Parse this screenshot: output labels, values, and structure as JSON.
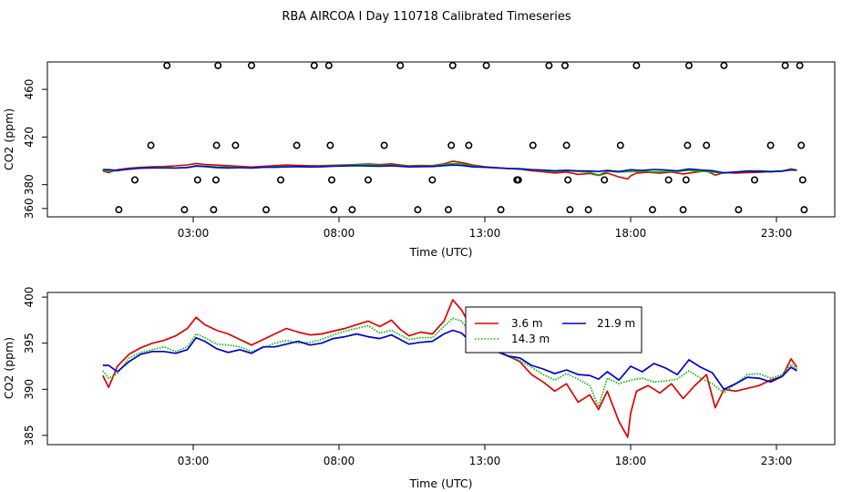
{
  "title": "RBA AIRCOA I  Day 110718  Calibrated Timeseries",
  "chart_data": [
    {
      "type": "scatter",
      "panel": "top",
      "xlabel": "Time (UTC)",
      "ylabel": "CO2 (ppm)",
      "xlim": [
        -2.0,
        25.0
      ],
      "ylim": [
        353,
        483
      ],
      "xticks": [
        3,
        8,
        13,
        18,
        23
      ],
      "xtick_labels": [
        "03:00",
        "08:00",
        "13:00",
        "18:00",
        "23:00"
      ],
      "yticks": [
        360,
        380,
        420,
        460
      ],
      "ytick_labels": [
        "360",
        "380",
        "420",
        "460"
      ],
      "calibration_points": [
        {
          "x": 0.45,
          "y": 359
        },
        {
          "x": 1.0,
          "y": 384
        },
        {
          "x": 1.55,
          "y": 413
        },
        {
          "x": 2.1,
          "y": 480
        },
        {
          "x": 2.7,
          "y": 359
        },
        {
          "x": 3.15,
          "y": 384
        },
        {
          "x": 3.7,
          "y": 359
        },
        {
          "x": 3.78,
          "y": 384
        },
        {
          "x": 3.8,
          "y": 413
        },
        {
          "x": 3.85,
          "y": 480
        },
        {
          "x": 4.45,
          "y": 413
        },
        {
          "x": 5.0,
          "y": 480
        },
        {
          "x": 5.5,
          "y": 359
        },
        {
          "x": 6.0,
          "y": 384
        },
        {
          "x": 6.55,
          "y": 413
        },
        {
          "x": 7.15,
          "y": 480
        },
        {
          "x": 7.65,
          "y": 480
        },
        {
          "x": 7.7,
          "y": 413
        },
        {
          "x": 7.75,
          "y": 384
        },
        {
          "x": 7.82,
          "y": 359
        },
        {
          "x": 8.45,
          "y": 359
        },
        {
          "x": 9.0,
          "y": 384
        },
        {
          "x": 9.55,
          "y": 413
        },
        {
          "x": 10.1,
          "y": 480
        },
        {
          "x": 10.7,
          "y": 359
        },
        {
          "x": 11.2,
          "y": 384
        },
        {
          "x": 11.75,
          "y": 359
        },
        {
          "x": 11.85,
          "y": 413
        },
        {
          "x": 11.9,
          "y": 480
        },
        {
          "x": 12.45,
          "y": 413
        },
        {
          "x": 13.05,
          "y": 480
        },
        {
          "x": 13.55,
          "y": 359
        },
        {
          "x": 14.1,
          "y": 384
        },
        {
          "x": 14.15,
          "y": 384
        },
        {
          "x": 14.65,
          "y": 413
        },
        {
          "x": 15.2,
          "y": 480
        },
        {
          "x": 15.75,
          "y": 480
        },
        {
          "x": 15.8,
          "y": 413
        },
        {
          "x": 15.85,
          "y": 384
        },
        {
          "x": 15.92,
          "y": 359
        },
        {
          "x": 16.55,
          "y": 359
        },
        {
          "x": 17.1,
          "y": 384
        },
        {
          "x": 17.65,
          "y": 413
        },
        {
          "x": 18.2,
          "y": 480
        },
        {
          "x": 18.75,
          "y": 359
        },
        {
          "x": 19.3,
          "y": 384
        },
        {
          "x": 19.8,
          "y": 359
        },
        {
          "x": 19.9,
          "y": 384
        },
        {
          "x": 19.95,
          "y": 413
        },
        {
          "x": 20.0,
          "y": 480
        },
        {
          "x": 20.6,
          "y": 413
        },
        {
          "x": 21.2,
          "y": 480
        },
        {
          "x": 21.7,
          "y": 359
        },
        {
          "x": 22.25,
          "y": 384
        },
        {
          "x": 22.8,
          "y": 413
        },
        {
          "x": 23.3,
          "y": 480
        },
        {
          "x": 23.8,
          "y": 480
        },
        {
          "x": 23.85,
          "y": 413
        },
        {
          "x": 23.9,
          "y": 384
        },
        {
          "x": 23.95,
          "y": 359
        }
      ]
    },
    {
      "type": "line",
      "panel": "bottom",
      "xlabel": "Time (UTC)",
      "ylabel": "CO2 (ppm)",
      "xlim": [
        -2.0,
        25.0
      ],
      "ylim": [
        384.0,
        400.5
      ],
      "xticks": [
        3,
        8,
        13,
        18,
        23
      ],
      "xtick_labels": [
        "03:00",
        "08:00",
        "13:00",
        "18:00",
        "23:00"
      ],
      "yticks": [
        385,
        390,
        395,
        400
      ],
      "ytick_labels": [
        "385",
        "390",
        "395",
        "400"
      ],
      "legend_position": "top-center",
      "series": [
        {
          "name": "3.6 m",
          "color": "#e00000",
          "style": "solid",
          "x": [
            -0.1,
            0.1,
            0.4,
            0.8,
            1.2,
            1.6,
            2.0,
            2.4,
            2.8,
            3.1,
            3.4,
            3.8,
            4.2,
            4.6,
            5.0,
            5.4,
            5.8,
            6.2,
            6.6,
            7.0,
            7.4,
            7.8,
            8.2,
            8.6,
            9.0,
            9.4,
            9.8,
            10.1,
            10.4,
            10.8,
            11.2,
            11.6,
            11.9,
            12.2,
            12.6,
            13.0,
            13.4,
            13.8,
            14.2,
            14.6,
            15.0,
            15.4,
            15.8,
            16.2,
            16.6,
            16.9,
            17.2,
            17.6,
            17.9,
            18.0,
            18.2,
            18.6,
            19.0,
            19.4,
            19.8,
            20.2,
            20.6,
            20.9,
            21.2,
            21.6,
            22.0,
            22.4,
            22.8,
            23.2,
            23.5,
            23.7
          ],
          "y": [
            391.5,
            390.2,
            392.5,
            393.8,
            394.5,
            395.0,
            395.3,
            395.8,
            396.6,
            397.8,
            397.0,
            396.4,
            396.0,
            395.4,
            394.8,
            395.4,
            396.0,
            396.6,
            396.2,
            395.9,
            396.0,
            396.3,
            396.6,
            397.0,
            397.4,
            396.8,
            397.5,
            396.5,
            395.8,
            396.2,
            396.0,
            397.4,
            399.7,
            398.6,
            396.4,
            395.0,
            394.2,
            393.6,
            393.0,
            391.6,
            390.8,
            389.8,
            390.6,
            388.6,
            389.4,
            387.8,
            389.8,
            386.5,
            384.8,
            387.4,
            389.8,
            390.4,
            389.6,
            390.6,
            389.0,
            390.4,
            391.6,
            388.0,
            390.0,
            389.8,
            390.1,
            390.4,
            391.0,
            391.4,
            393.3,
            392.4
          ]
        },
        {
          "name": "14.3 m",
          "color": "#00bb00",
          "style": "dotted",
          "x": [
            -0.1,
            0.1,
            0.4,
            0.8,
            1.2,
            1.6,
            2.0,
            2.4,
            2.8,
            3.1,
            3.4,
            3.8,
            4.2,
            4.6,
            5.0,
            5.4,
            5.8,
            6.2,
            6.6,
            7.0,
            7.4,
            7.8,
            8.2,
            8.6,
            9.0,
            9.4,
            9.8,
            10.1,
            10.4,
            10.8,
            11.2,
            11.6,
            11.9,
            12.2,
            12.6,
            13.0,
            13.4,
            13.8,
            14.2,
            14.6,
            15.0,
            15.4,
            15.8,
            16.2,
            16.6,
            16.9,
            17.2,
            17.6,
            18.0,
            18.4,
            18.8,
            19.2,
            19.6,
            20.0,
            20.4,
            20.8,
            21.2,
            21.6,
            22.0,
            22.4,
            22.8,
            23.2,
            23.5,
            23.7
          ],
          "y": [
            392.0,
            391.2,
            391.7,
            393.4,
            394.0,
            394.3,
            394.6,
            394.1,
            394.6,
            396.0,
            395.6,
            394.9,
            394.8,
            394.6,
            394.1,
            394.5,
            395.0,
            395.3,
            395.0,
            395.1,
            395.4,
            395.9,
            396.3,
            396.6,
            396.9,
            396.1,
            396.4,
            395.9,
            395.4,
            395.6,
            395.6,
            396.8,
            397.7,
            397.4,
            395.6,
            394.6,
            394.3,
            393.6,
            393.1,
            392.4,
            391.6,
            391.0,
            391.7,
            391.1,
            390.4,
            388.1,
            391.2,
            390.6,
            391.0,
            391.2,
            390.8,
            390.9,
            391.1,
            392.0,
            391.2,
            390.6,
            389.6,
            390.6,
            391.6,
            391.7,
            391.2,
            391.6,
            392.7,
            392.2
          ]
        },
        {
          "name": "21.9 m",
          "color": "#0000d0",
          "style": "solid",
          "x": [
            -0.1,
            0.1,
            0.4,
            0.8,
            1.2,
            1.6,
            2.0,
            2.4,
            2.8,
            3.1,
            3.4,
            3.8,
            4.2,
            4.6,
            5.0,
            5.4,
            5.8,
            6.2,
            6.6,
            7.0,
            7.4,
            7.8,
            8.2,
            8.6,
            9.0,
            9.4,
            9.8,
            10.1,
            10.4,
            10.8,
            11.2,
            11.6,
            11.9,
            12.2,
            12.6,
            13.0,
            13.4,
            13.8,
            14.2,
            14.6,
            15.0,
            15.4,
            15.8,
            16.2,
            16.6,
            16.9,
            17.2,
            17.6,
            18.0,
            18.4,
            18.8,
            19.2,
            19.6,
            20.0,
            20.4,
            20.8,
            21.2,
            21.6,
            22.0,
            22.4,
            22.8,
            23.2,
            23.5,
            23.7
          ],
          "y": [
            392.6,
            392.6,
            391.9,
            393.0,
            393.8,
            394.1,
            394.1,
            393.9,
            394.3,
            395.6,
            395.2,
            394.4,
            394.0,
            394.3,
            393.9,
            394.6,
            394.6,
            394.9,
            395.2,
            394.8,
            395.0,
            395.5,
            395.7,
            396.0,
            395.7,
            395.5,
            395.9,
            395.4,
            394.9,
            395.1,
            395.2,
            396.0,
            396.4,
            396.1,
            394.9,
            394.6,
            394.1,
            393.6,
            393.4,
            392.6,
            392.2,
            391.7,
            392.1,
            391.6,
            391.5,
            391.1,
            391.9,
            391.0,
            392.5,
            391.9,
            392.8,
            392.3,
            391.6,
            393.2,
            392.4,
            391.8,
            390.0,
            390.6,
            391.3,
            391.2,
            390.8,
            391.4,
            392.4,
            392.0
          ]
        }
      ]
    }
  ]
}
